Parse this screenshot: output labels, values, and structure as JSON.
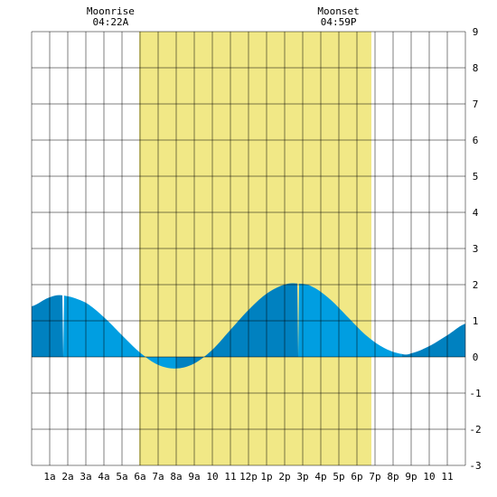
{
  "chart_data": {
    "type": "area",
    "title": "",
    "xlabel": "",
    "ylabel": "",
    "x_tick_labels": [
      "1a",
      "2a",
      "3a",
      "4a",
      "5a",
      "6a",
      "7a",
      "8a",
      "9a",
      "10",
      "11",
      "12p",
      "1p",
      "2p",
      "3p",
      "4p",
      "5p",
      "6p",
      "7p",
      "8p",
      "9p",
      "10",
      "11"
    ],
    "xlim": [
      0,
      24
    ],
    "ylim": [
      -3,
      9
    ],
    "y_ticks": [
      -3,
      -2,
      -1,
      0,
      1,
      2,
      3,
      4,
      5,
      6,
      7,
      8,
      9
    ],
    "grid": true,
    "daylight_band": {
      "start_hour": 5.95,
      "end_hour": 18.8,
      "color": "#f1e886"
    },
    "moonrise": {
      "label": "Moonrise",
      "time": "04:22A",
      "hour": 4.37
    },
    "moonset": {
      "label": "Moonset",
      "time": "04:59P",
      "hour": 16.98
    },
    "series": [
      {
        "x": [
          0,
          1.0,
          1.75,
          3.0,
          4.0,
          5.0,
          6.0,
          7.0,
          8.0,
          9.0,
          10.0,
          11.0,
          12.0,
          13.0,
          14.0,
          14.75,
          15.5,
          16.5,
          17.5,
          18.5,
          19.5,
          20.5,
          21.0,
          22.0,
          23.0,
          24.0
        ],
        "y": [
          1.4,
          1.65,
          1.7,
          1.5,
          1.1,
          0.6,
          0.12,
          -0.22,
          -0.32,
          -0.18,
          0.2,
          0.75,
          1.3,
          1.75,
          2.0,
          2.03,
          1.95,
          1.6,
          1.1,
          0.6,
          0.25,
          0.08,
          0.1,
          0.3,
          0.6,
          0.92
        ]
      }
    ],
    "colors": {
      "tide_light": "#009ee1",
      "tide_dark": "#0081c0",
      "grid": "#000000",
      "background": "#ffffff"
    }
  }
}
